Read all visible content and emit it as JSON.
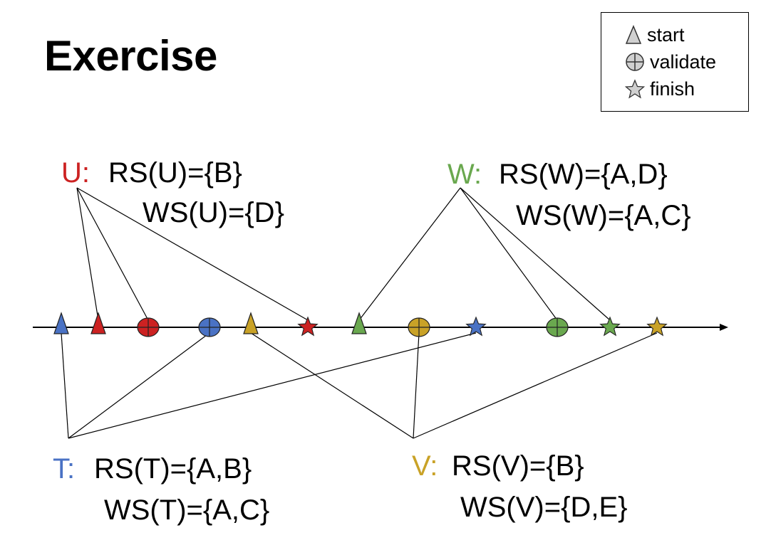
{
  "title": "Exercise",
  "legend": {
    "start": "start",
    "validate": "validate",
    "finish": "finish"
  },
  "transactions": {
    "U": {
      "name": "U:",
      "rs": "RS(U)={B}",
      "ws": "WS(U)={D}",
      "color": "#cc2222"
    },
    "W": {
      "name": "W:",
      "rs": "RS(W)={A,D}",
      "ws": "WS(W)={A,C}",
      "color": "#6aa84f"
    },
    "T": {
      "name": "T:",
      "rs": "RS(T)={A,B}",
      "ws": "WS(T)={A,C}",
      "color": "#4a72c4"
    },
    "V": {
      "name": "V:",
      "rs": "RS(V)={B}",
      "ws": "WS(V)={D,E}",
      "color": "#c9a227"
    }
  },
  "timeline_events": [
    {
      "txn": "T",
      "event": "start"
    },
    {
      "txn": "U",
      "event": "start"
    },
    {
      "txn": "U",
      "event": "validate"
    },
    {
      "txn": "T",
      "event": "validate"
    },
    {
      "txn": "V",
      "event": "start"
    },
    {
      "txn": "U",
      "event": "finish"
    },
    {
      "txn": "W",
      "event": "start"
    },
    {
      "txn": "V",
      "event": "validate"
    },
    {
      "txn": "T",
      "event": "finish"
    },
    {
      "txn": "W",
      "event": "validate"
    },
    {
      "txn": "W",
      "event": "finish"
    },
    {
      "txn": "V",
      "event": "finish"
    }
  ]
}
